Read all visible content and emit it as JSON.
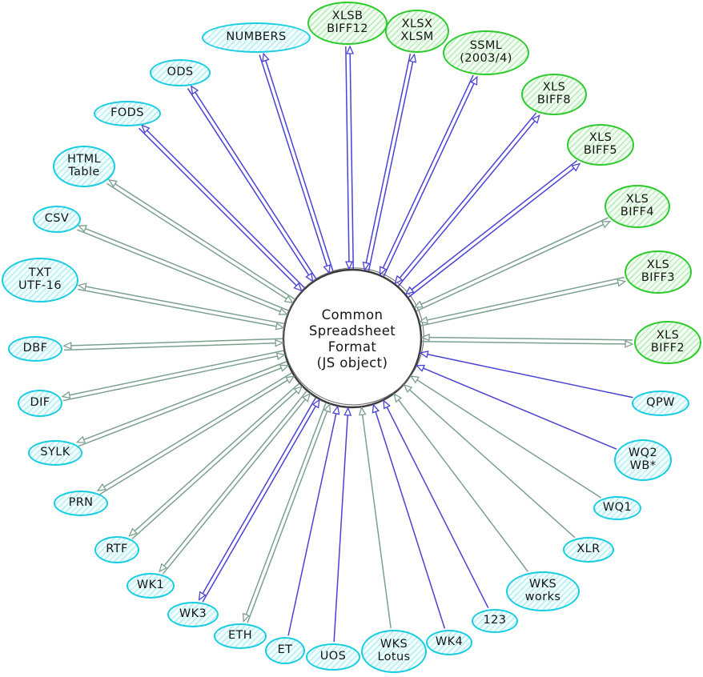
{
  "diagram": {
    "title": "Spreadsheet format conversion diagram",
    "center": {
      "label": "Common\nSpreadsheet\nFormat\n(JS object)"
    },
    "colors": {
      "cyan_node_border": "#18cde2",
      "green_node_border": "#2ecb2e",
      "arrow_blue": "#4a42d4",
      "arrow_gray": "#7ba08d",
      "center_circle_stroke": "#3a3a3a",
      "text": "#151515",
      "background": "#ffffff"
    },
    "legend_hint": {
      "double_arrow_meaning": "read and write (arrows both directions)",
      "single_arrow_meaning": "read into common format only"
    },
    "nodes": [
      {
        "id": "numbers",
        "label": "NUMBERS",
        "fill": "cyan",
        "arrow": "blue",
        "mode": "rw"
      },
      {
        "id": "xlsb-biff12",
        "label": "XLSB\nBIFF12",
        "fill": "green",
        "arrow": "blue",
        "mode": "rw"
      },
      {
        "id": "xlsx-xlsm",
        "label": "XLSX\nXLSM",
        "fill": "green",
        "arrow": "blue",
        "mode": "rw"
      },
      {
        "id": "ssml",
        "label": "SSML\n(2003/4)",
        "fill": "green",
        "arrow": "blue",
        "mode": "rw"
      },
      {
        "id": "xls-biff8",
        "label": "XLS\nBIFF8",
        "fill": "green",
        "arrow": "blue",
        "mode": "rw"
      },
      {
        "id": "xls-biff5",
        "label": "XLS\nBIFF5",
        "fill": "green",
        "arrow": "blue",
        "mode": "rw"
      },
      {
        "id": "xls-biff4",
        "label": "XLS\nBIFF4",
        "fill": "green",
        "arrow": "gray",
        "mode": "rw"
      },
      {
        "id": "xls-biff3",
        "label": "XLS\nBIFF3",
        "fill": "green",
        "arrow": "gray",
        "mode": "rw"
      },
      {
        "id": "xls-biff2",
        "label": "XLS\nBIFF2",
        "fill": "green",
        "arrow": "gray",
        "mode": "rw"
      },
      {
        "id": "qpw",
        "label": "QPW",
        "fill": "cyan",
        "arrow": "blue",
        "mode": "r"
      },
      {
        "id": "wq2-wb",
        "label": "WQ2\nWB*",
        "fill": "cyan",
        "arrow": "blue",
        "mode": "r"
      },
      {
        "id": "wq1",
        "label": "WQ1",
        "fill": "cyan",
        "arrow": "gray",
        "mode": "r"
      },
      {
        "id": "xlr",
        "label": "XLR",
        "fill": "cyan",
        "arrow": "gray",
        "mode": "r"
      },
      {
        "id": "wks-works",
        "label": "WKS\nworks",
        "fill": "cyan",
        "arrow": "gray",
        "mode": "r"
      },
      {
        "id": "lotus-123",
        "label": "123",
        "fill": "cyan",
        "arrow": "blue",
        "mode": "r"
      },
      {
        "id": "wk4",
        "label": "WK4",
        "fill": "cyan",
        "arrow": "blue",
        "mode": "r"
      },
      {
        "id": "wks-lotus",
        "label": "WKS\nLotus",
        "fill": "cyan",
        "arrow": "gray",
        "mode": "r"
      },
      {
        "id": "uos",
        "label": "UOS",
        "fill": "cyan",
        "arrow": "blue",
        "mode": "r"
      },
      {
        "id": "et",
        "label": "ET",
        "fill": "cyan",
        "arrow": "blue",
        "mode": "r"
      },
      {
        "id": "eth",
        "label": "ETH",
        "fill": "cyan",
        "arrow": "gray",
        "mode": "rw"
      },
      {
        "id": "wk3",
        "label": "WK3",
        "fill": "cyan",
        "arrow": "blue",
        "mode": "rw"
      },
      {
        "id": "wk1",
        "label": "WK1",
        "fill": "cyan",
        "arrow": "gray",
        "mode": "rw"
      },
      {
        "id": "rtf",
        "label": "RTF",
        "fill": "cyan",
        "arrow": "gray",
        "mode": "rw"
      },
      {
        "id": "prn",
        "label": "PRN",
        "fill": "cyan",
        "arrow": "gray",
        "mode": "rw"
      },
      {
        "id": "sylk",
        "label": "SYLK",
        "fill": "cyan",
        "arrow": "gray",
        "mode": "rw"
      },
      {
        "id": "dif",
        "label": "DIF",
        "fill": "cyan",
        "arrow": "gray",
        "mode": "rw"
      },
      {
        "id": "dbf",
        "label": "DBF",
        "fill": "cyan",
        "arrow": "gray",
        "mode": "rw"
      },
      {
        "id": "txt-utf16",
        "label": "TXT\nUTF-16",
        "fill": "cyan",
        "arrow": "gray",
        "mode": "rw"
      },
      {
        "id": "csv",
        "label": "CSV",
        "fill": "cyan",
        "arrow": "gray",
        "mode": "rw"
      },
      {
        "id": "html-table",
        "label": "HTML\nTable",
        "fill": "cyan",
        "arrow": "gray",
        "mode": "rw"
      },
      {
        "id": "fods",
        "label": "FODS",
        "fill": "cyan",
        "arrow": "blue",
        "mode": "rw"
      },
      {
        "id": "ods",
        "label": "ODS",
        "fill": "cyan",
        "arrow": "blue",
        "mode": "rw"
      }
    ]
  }
}
